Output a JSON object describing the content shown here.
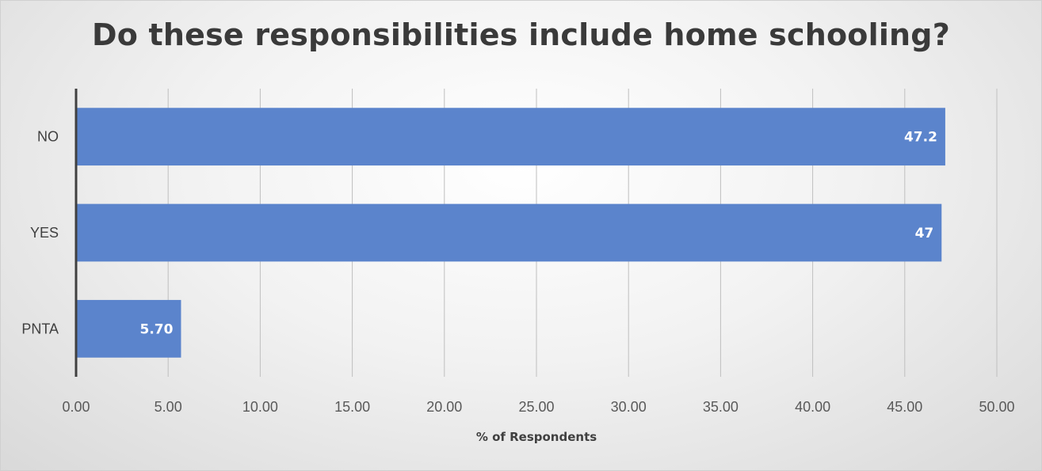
{
  "chart_data": {
    "type": "bar",
    "orientation": "horizontal",
    "title": "Do these responsibilities include home schooling?",
    "xlabel": "% of Respondents",
    "ylabel": "",
    "categories": [
      "NO",
      "YES",
      "PNTA"
    ],
    "values": [
      47.2,
      47,
      5.7
    ],
    "data_labels": [
      "47.2",
      "47",
      "5.70"
    ],
    "xlim": [
      0,
      50
    ],
    "x_ticks": [
      "0.00",
      "5.00",
      "10.00",
      "15.00",
      "20.00",
      "25.00",
      "30.00",
      "35.00",
      "40.00",
      "45.00",
      "50.00"
    ],
    "grid": true,
    "legend": "none",
    "colors": {
      "bar": "#5b84cc",
      "gridline": "#bfbfbf",
      "axis": "#404040"
    }
  }
}
